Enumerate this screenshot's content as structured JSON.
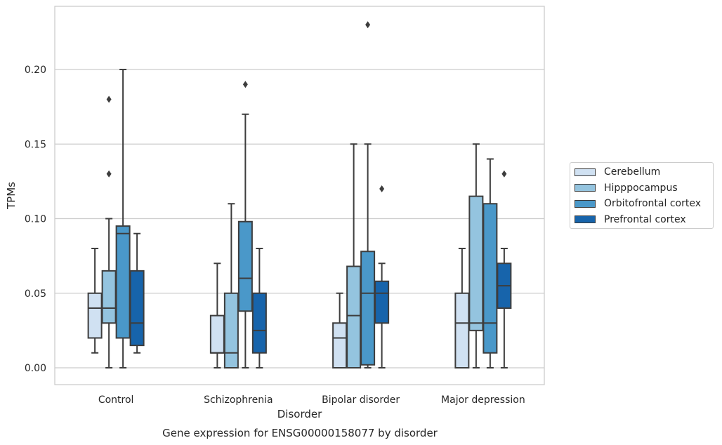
{
  "chart_data": {
    "type": "box",
    "title": "Gene expression for ENSG00000158077 by disorder",
    "xlabel": "Disorder",
    "ylabel": "TPMs",
    "ylim": [
      -0.011,
      0.24
    ],
    "yticks": [
      "0.00",
      "0.05",
      "0.10",
      "0.15",
      "0.20"
    ],
    "grid": "horizontal",
    "legend_position": "right",
    "categories": [
      "Control",
      "Schizophrenia",
      "Bipolar disorder",
      "Major depression"
    ],
    "series": [
      {
        "name": "Cerebellum",
        "color": "#d0e1f2",
        "boxes": [
          {
            "whisker_low": 0.01,
            "q1": 0.02,
            "median": 0.04,
            "q3": 0.05,
            "whisker_high": 0.08,
            "outliers": []
          },
          {
            "whisker_low": 0.0,
            "q1": 0.01,
            "median": 0.01,
            "q3": 0.035,
            "whisker_high": 0.07,
            "outliers": []
          },
          {
            "whisker_low": 0.0,
            "q1": 0.0,
            "median": 0.02,
            "q3": 0.03,
            "whisker_high": 0.05,
            "outliers": []
          },
          {
            "whisker_low": 0.0,
            "q1": 0.0,
            "median": 0.03,
            "q3": 0.05,
            "whisker_high": 0.08,
            "outliers": []
          }
        ]
      },
      {
        "name": "Hipppocampus",
        "color": "#94c4df",
        "boxes": [
          {
            "whisker_low": 0.0,
            "q1": 0.03,
            "median": 0.04,
            "q3": 0.065,
            "whisker_high": 0.1,
            "outliers": [
              0.13,
              0.18
            ]
          },
          {
            "whisker_low": 0.0,
            "q1": 0.0,
            "median": 0.01,
            "q3": 0.05,
            "whisker_high": 0.11,
            "outliers": []
          },
          {
            "whisker_low": 0.0,
            "q1": 0.0,
            "median": 0.035,
            "q3": 0.068,
            "whisker_high": 0.15,
            "outliers": []
          },
          {
            "whisker_low": 0.0,
            "q1": 0.025,
            "median": 0.03,
            "q3": 0.115,
            "whisker_high": 0.15,
            "outliers": []
          }
        ]
      },
      {
        "name": "Orbitofrontal cortex",
        "color": "#4a98c9",
        "boxes": [
          {
            "whisker_low": 0.0,
            "q1": 0.02,
            "median": 0.09,
            "q3": 0.095,
            "whisker_high": 0.2,
            "outliers": []
          },
          {
            "whisker_low": 0.0,
            "q1": 0.038,
            "median": 0.06,
            "q3": 0.098,
            "whisker_high": 0.17,
            "outliers": [
              0.19
            ]
          },
          {
            "whisker_low": 0.0,
            "q1": 0.002,
            "median": 0.05,
            "q3": 0.078,
            "whisker_high": 0.15,
            "outliers": [
              0.23
            ]
          },
          {
            "whisker_low": 0.0,
            "q1": 0.01,
            "median": 0.03,
            "q3": 0.11,
            "whisker_high": 0.14,
            "outliers": []
          }
        ]
      },
      {
        "name": "Prefrontal cortex",
        "color": "#1764ab",
        "boxes": [
          {
            "whisker_low": 0.01,
            "q1": 0.015,
            "median": 0.03,
            "q3": 0.065,
            "whisker_high": 0.09,
            "outliers": []
          },
          {
            "whisker_low": 0.0,
            "q1": 0.01,
            "median": 0.025,
            "q3": 0.05,
            "whisker_high": 0.08,
            "outliers": []
          },
          {
            "whisker_low": 0.0,
            "q1": 0.03,
            "median": 0.05,
            "q3": 0.058,
            "whisker_high": 0.07,
            "outliers": [
              0.12
            ]
          },
          {
            "whisker_low": 0.0,
            "q1": 0.04,
            "median": 0.055,
            "q3": 0.07,
            "whisker_high": 0.08,
            "outliers": [
              0.13
            ]
          }
        ]
      }
    ]
  }
}
